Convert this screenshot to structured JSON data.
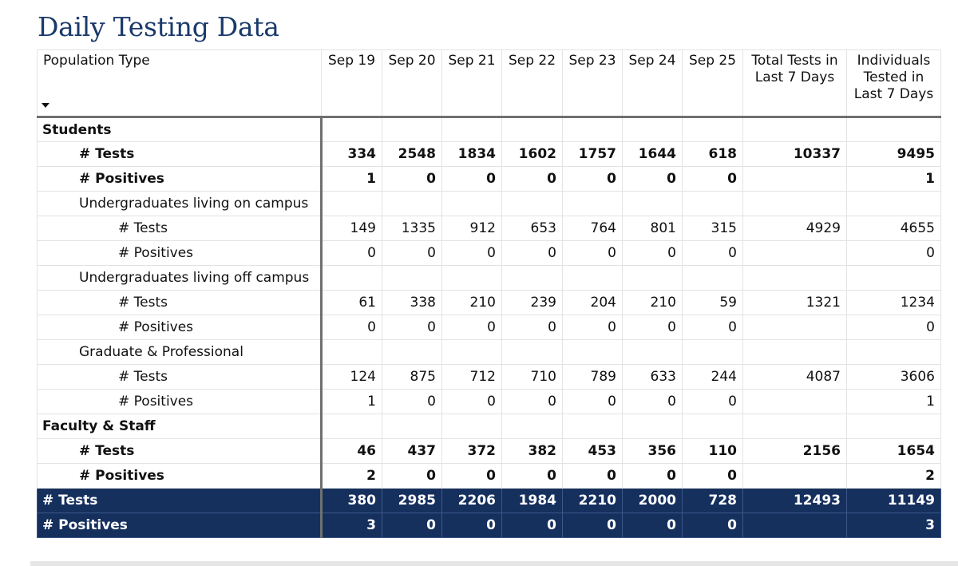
{
  "title": "Daily Testing Data",
  "header": {
    "population_type": "Population Type",
    "dates": [
      "Sep 19",
      "Sep 20",
      "Sep 21",
      "Sep 22",
      "Sep 23",
      "Sep 24",
      "Sep 25"
    ],
    "total_tests": "Total Tests in Last 7 Days",
    "individuals": "Individuals Tested in Last 7 Days"
  },
  "rows": [
    {
      "label": "Students",
      "level": 0,
      "bold": true,
      "values": [
        "",
        "",
        "",
        "",
        "",
        "",
        ""
      ],
      "total": "",
      "individuals": ""
    },
    {
      "label": "# Tests",
      "level": 1,
      "bold": true,
      "values": [
        "334",
        "2548",
        "1834",
        "1602",
        "1757",
        "1644",
        "618"
      ],
      "total": "10337",
      "individuals": "9495"
    },
    {
      "label": "# Positives",
      "level": 1,
      "bold": true,
      "values": [
        "1",
        "0",
        "0",
        "0",
        "0",
        "0",
        "0"
      ],
      "total": "",
      "individuals": "1"
    },
    {
      "label": "Undergraduates living on campus",
      "level": 1,
      "bold": false,
      "values": [
        "",
        "",
        "",
        "",
        "",
        "",
        ""
      ],
      "total": "",
      "individuals": ""
    },
    {
      "label": "# Tests",
      "level": 2,
      "bold": false,
      "values": [
        "149",
        "1335",
        "912",
        "653",
        "764",
        "801",
        "315"
      ],
      "total": "4929",
      "individuals": "4655"
    },
    {
      "label": "# Positives",
      "level": 2,
      "bold": false,
      "values": [
        "0",
        "0",
        "0",
        "0",
        "0",
        "0",
        "0"
      ],
      "total": "",
      "individuals": "0"
    },
    {
      "label": "Undergraduates living off campus",
      "level": 1,
      "bold": false,
      "values": [
        "",
        "",
        "",
        "",
        "",
        "",
        ""
      ],
      "total": "",
      "individuals": ""
    },
    {
      "label": "# Tests",
      "level": 2,
      "bold": false,
      "values": [
        "61",
        "338",
        "210",
        "239",
        "204",
        "210",
        "59"
      ],
      "total": "1321",
      "individuals": "1234"
    },
    {
      "label": "# Positives",
      "level": 2,
      "bold": false,
      "values": [
        "0",
        "0",
        "0",
        "0",
        "0",
        "0",
        "0"
      ],
      "total": "",
      "individuals": "0"
    },
    {
      "label": "Graduate & Professional",
      "level": 1,
      "bold": false,
      "values": [
        "",
        "",
        "",
        "",
        "",
        "",
        ""
      ],
      "total": "",
      "individuals": ""
    },
    {
      "label": "# Tests",
      "level": 2,
      "bold": false,
      "values": [
        "124",
        "875",
        "712",
        "710",
        "789",
        "633",
        "244"
      ],
      "total": "4087",
      "individuals": "3606"
    },
    {
      "label": "# Positives",
      "level": 2,
      "bold": false,
      "values": [
        "1",
        "0",
        "0",
        "0",
        "0",
        "0",
        "0"
      ],
      "total": "",
      "individuals": "1"
    },
    {
      "label": "Faculty & Staff",
      "level": 0,
      "bold": true,
      "values": [
        "",
        "",
        "",
        "",
        "",
        "",
        ""
      ],
      "total": "",
      "individuals": ""
    },
    {
      "label": "# Tests",
      "level": 1,
      "bold": true,
      "values": [
        "46",
        "437",
        "372",
        "382",
        "453",
        "356",
        "110"
      ],
      "total": "2156",
      "individuals": "1654"
    },
    {
      "label": "# Positives",
      "level": 1,
      "bold": true,
      "values": [
        "2",
        "0",
        "0",
        "0",
        "0",
        "0",
        "0"
      ],
      "total": "",
      "individuals": "2"
    }
  ],
  "totals": [
    {
      "label": "# Tests",
      "values": [
        "380",
        "2985",
        "2206",
        "1984",
        "2210",
        "2000",
        "728"
      ],
      "total": "12493",
      "individuals": "11149"
    },
    {
      "label": "# Positives",
      "values": [
        "3",
        "0",
        "0",
        "0",
        "0",
        "0",
        "0"
      ],
      "total": "",
      "individuals": "3"
    }
  ],
  "colors": {
    "title": "#1b3a6b",
    "total_row_bg": "#16305e",
    "total_row_text": "#ffffff",
    "divider": "#707070"
  }
}
